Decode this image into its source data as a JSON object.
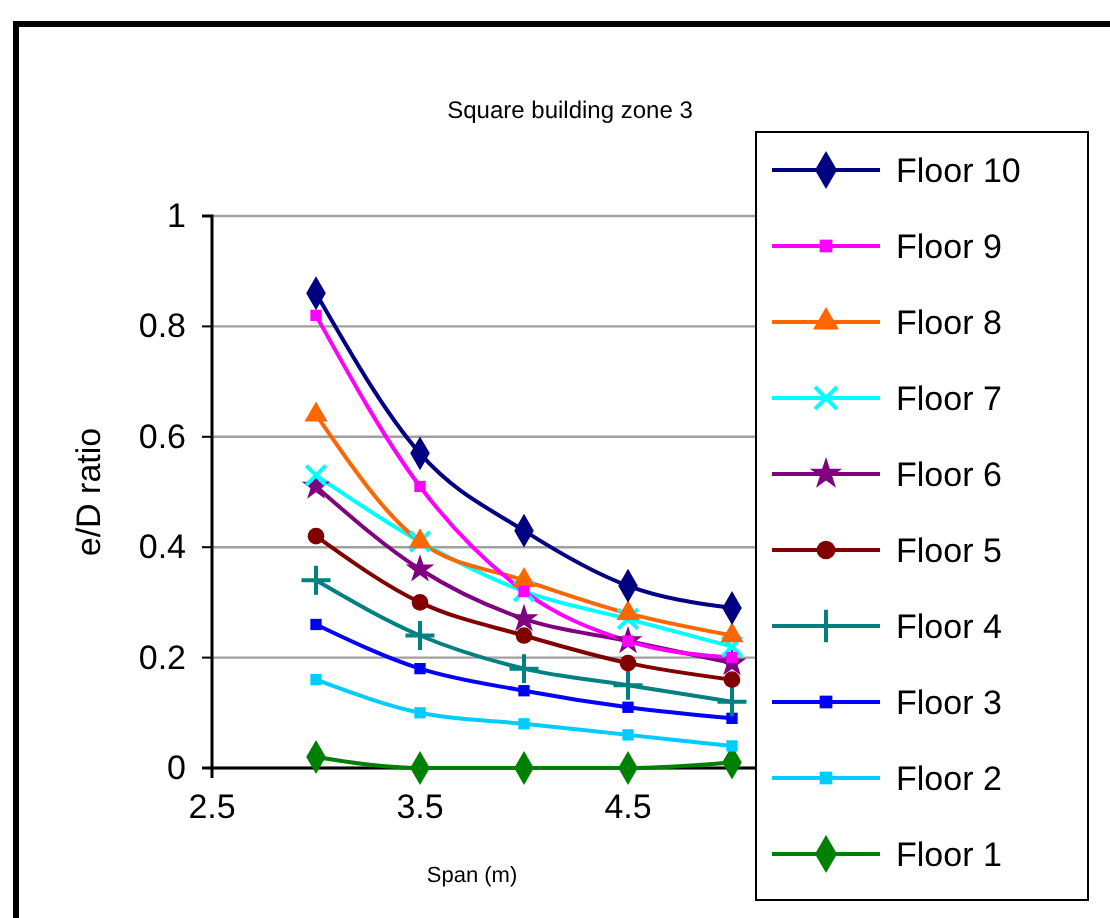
{
  "chart_data": {
    "type": "line",
    "title": "Square building zone 3",
    "xlabel": "Span (m)",
    "ylabel": "e/D ratio",
    "x": [
      3,
      3.5,
      4,
      4.5,
      5
    ],
    "xlim": [
      2.5,
      5.5
    ],
    "xticks": [
      2.5,
      3.5,
      4.5
    ],
    "ylim": [
      0,
      1
    ],
    "yticks": [
      0,
      0.2,
      0.4,
      0.6,
      0.8,
      1
    ],
    "grid": "y",
    "legend": "right",
    "series": [
      {
        "name": "Floor 10",
        "color": "#000080",
        "marker": "diamond",
        "values": [
          0.86,
          0.57,
          0.43,
          0.33,
          0.29
        ]
      },
      {
        "name": "Floor 9",
        "color": "#ff00ff",
        "marker": "square",
        "values": [
          0.82,
          0.51,
          0.32,
          0.23,
          0.2
        ]
      },
      {
        "name": "Floor 8",
        "color": "#ff6600",
        "marker": "triangle",
        "values": [
          0.64,
          0.41,
          0.34,
          0.28,
          0.24
        ]
      },
      {
        "name": "Floor 7",
        "color": "#00ffff",
        "marker": "x",
        "values": [
          0.53,
          0.41,
          0.32,
          0.27,
          0.22
        ]
      },
      {
        "name": "Floor 6",
        "color": "#800080",
        "marker": "star",
        "values": [
          0.51,
          0.36,
          0.27,
          0.23,
          0.19
        ]
      },
      {
        "name": "Floor 5",
        "color": "#800000",
        "marker": "circle",
        "values": [
          0.42,
          0.3,
          0.24,
          0.19,
          0.16
        ]
      },
      {
        "name": "Floor 4",
        "color": "#008080",
        "marker": "cross",
        "values": [
          0.34,
          0.24,
          0.18,
          0.15,
          0.12
        ]
      },
      {
        "name": "Floor 3",
        "color": "#0000ff",
        "marker": "square",
        "values": [
          0.26,
          0.18,
          0.14,
          0.11,
          0.09
        ]
      },
      {
        "name": "Floor 2",
        "color": "#00ccff",
        "marker": "square",
        "values": [
          0.16,
          0.1,
          0.08,
          0.06,
          0.04
        ]
      },
      {
        "name": "Floor 1",
        "color": "#008000",
        "marker": "diamond",
        "values": [
          0.02,
          0,
          0,
          0,
          0.01
        ]
      }
    ]
  }
}
